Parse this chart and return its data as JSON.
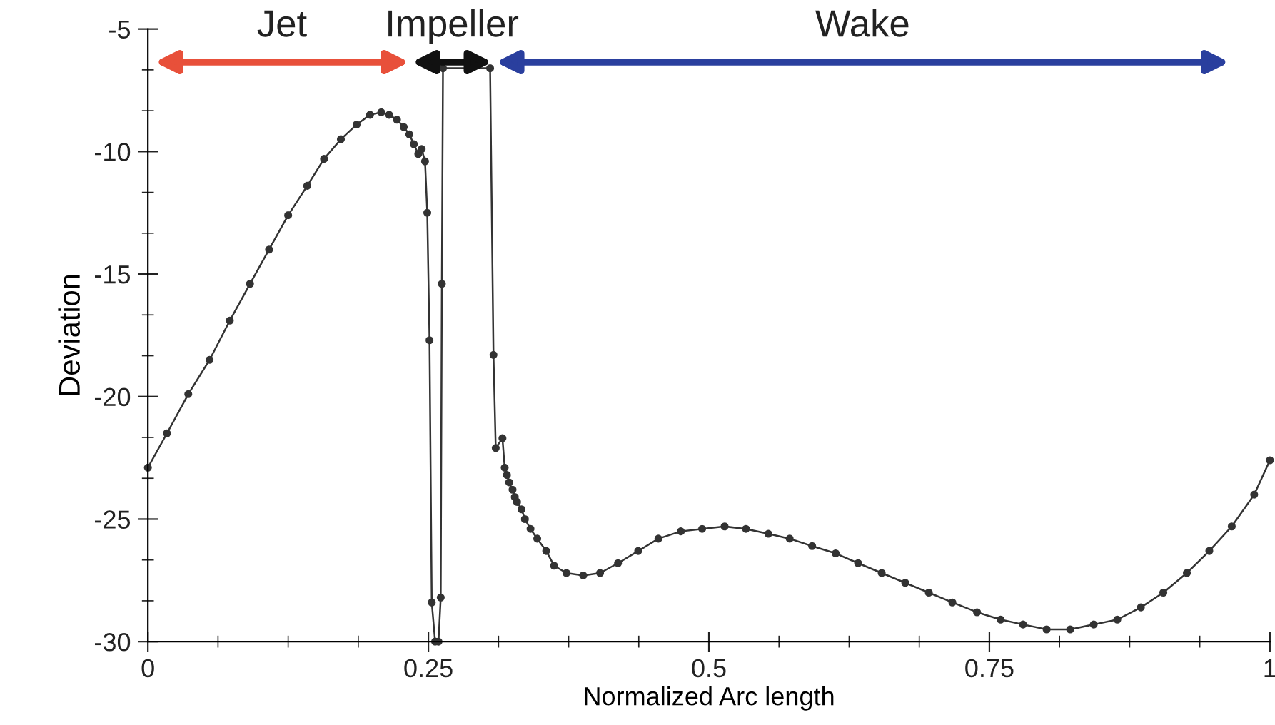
{
  "chart_data": {
    "type": "line",
    "xlabel": "Normalized Arc length",
    "ylabel": "Deviation",
    "xlim": [
      0,
      1
    ],
    "xticks": [
      0,
      0.25,
      0.5,
      0.75,
      1
    ],
    "ylim": [
      -30,
      -5
    ],
    "yticks": [
      -5,
      -10,
      -15,
      -20,
      -25,
      -30
    ],
    "grid": false,
    "legend": false,
    "marker": "circle",
    "line_style": "solid",
    "annotations": [
      "Jet",
      "Impeller",
      "Wake"
    ],
    "series": [
      {
        "color": "#333333",
        "x": [
          0,
          0.017,
          0.036,
          0.055,
          0.073,
          0.091,
          0.108,
          0.125,
          0.142,
          0.157,
          0.172,
          0.186,
          0.198,
          0.208,
          0.215,
          0.222,
          0.228,
          0.233,
          0.237,
          0.241,
          0.244,
          0.247,
          0.249,
          0.251,
          0.253,
          0.256,
          0.259,
          0.261,
          0.262,
          0.263,
          0.305,
          0.308,
          0.31,
          0.316,
          0.318,
          0.32,
          0.322,
          0.325,
          0.327,
          0.329,
          0.333,
          0.336,
          0.341,
          0.347,
          0.355,
          0.362,
          0.373,
          0.388,
          0.403,
          0.419,
          0.437,
          0.455,
          0.475,
          0.494,
          0.514,
          0.533,
          0.553,
          0.572,
          0.592,
          0.613,
          0.633,
          0.654,
          0.675,
          0.696,
          0.717,
          0.739,
          0.76,
          0.78,
          0.801,
          0.822,
          0.843,
          0.864,
          0.885,
          0.905,
          0.926,
          0.946,
          0.966,
          0.986,
          1.0
        ],
        "values": [
          -22.9,
          -21.5,
          -19.9,
          -18.5,
          -16.9,
          -15.4,
          -14.0,
          -12.6,
          -11.4,
          -10.3,
          -9.5,
          -8.9,
          -8.5,
          -8.4,
          -8.5,
          -8.7,
          -9.0,
          -9.3,
          -9.7,
          -10.1,
          -9.9,
          -10.4,
          -12.5,
          -17.7,
          -28.4,
          -30.0,
          -30.0,
          -28.2,
          -15.4,
          -6.6,
          -6.6,
          -18.3,
          -22.1,
          -21.7,
          -22.9,
          -23.2,
          -23.5,
          -23.8,
          -24.1,
          -24.3,
          -24.6,
          -25.0,
          -25.4,
          -25.8,
          -26.3,
          -26.9,
          -27.2,
          -27.3,
          -27.2,
          -26.8,
          -26.3,
          -25.8,
          -25.5,
          -25.4,
          -25.3,
          -25.4,
          -25.6,
          -25.8,
          -26.1,
          -26.4,
          -26.8,
          -27.2,
          -27.6,
          -28.0,
          -28.4,
          -28.8,
          -29.1,
          -29.3,
          -29.5,
          -29.5,
          -29.3,
          -29.1,
          -28.6,
          -28.0,
          -27.2,
          -26.3,
          -25.3,
          -24.0,
          -22.6
        ]
      }
    ]
  }
}
